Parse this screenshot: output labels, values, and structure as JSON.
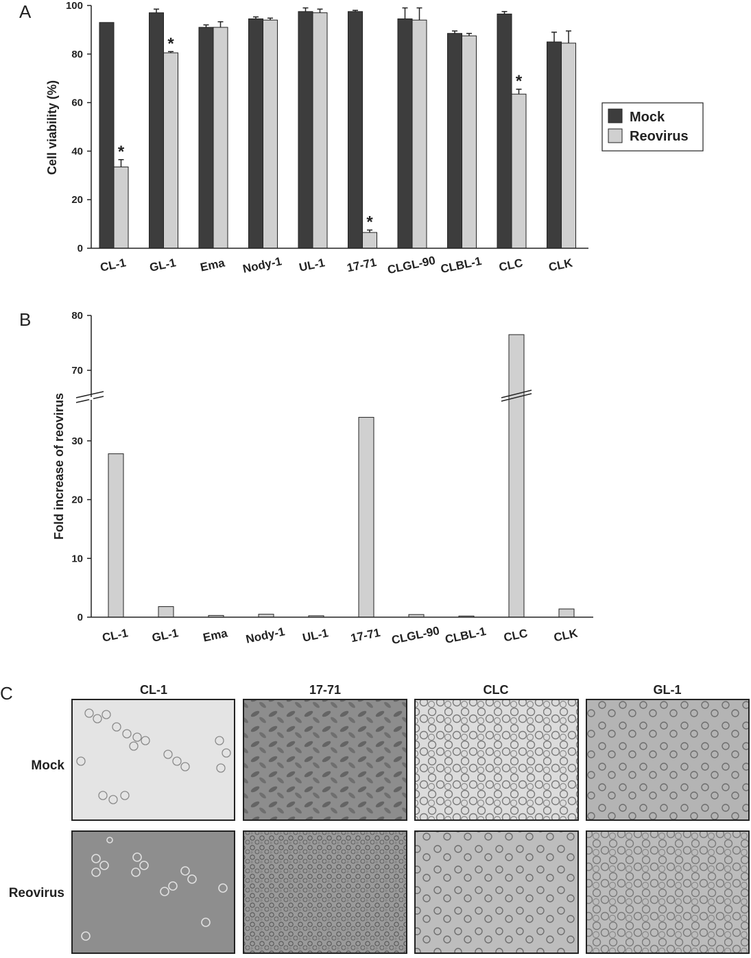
{
  "panels": {
    "A": "A",
    "B": "B",
    "C": "C"
  },
  "chart_data": [
    {
      "type": "bar",
      "panel": "A",
      "categories": [
        "CL-1",
        "GL-1",
        "Ema",
        "Nody-1",
        "UL-1",
        "17-71",
        "CLGL-90",
        "CLBL-1",
        "CLC",
        "CLK"
      ],
      "series": [
        {
          "name": "Mock",
          "color": "#3d3d3d",
          "values": [
            93,
            97,
            91,
            94.5,
            97.5,
            97.5,
            94.5,
            88.5,
            96.5,
            85
          ],
          "errors": [
            0,
            1.5,
            1,
            0.8,
            1.5,
            0.5,
            4.5,
            1,
            1,
            4
          ]
        },
        {
          "name": "Reovirus",
          "color": "#d0d0d0",
          "values": [
            33.5,
            80.5,
            91,
            94,
            97,
            6.5,
            94,
            87.5,
            63.5,
            84.5
          ],
          "errors": [
            3,
            0.5,
            2.3,
            0.8,
            1.5,
            1,
            5,
            1,
            2,
            5
          ]
        }
      ],
      "significant": [
        true,
        true,
        false,
        false,
        false,
        true,
        false,
        false,
        true,
        false
      ],
      "significance_marker": "*",
      "ylabel": "Cell viability (%)",
      "xlabel": "",
      "ylim": [
        0,
        100
      ],
      "yticks": [
        0,
        20,
        40,
        60,
        80,
        100
      ],
      "legend_position": "right"
    },
    {
      "type": "bar",
      "panel": "B",
      "categories": [
        "CL-1",
        "GL-1",
        "Ema",
        "Nody-1",
        "UL-1",
        "17-71",
        "CLGL-90",
        "CLBL-1",
        "CLC",
        "CLK"
      ],
      "series": [
        {
          "name": "Reovirus",
          "color": "#d0d0d0",
          "values": [
            27.8,
            1.8,
            0.3,
            0.5,
            0.25,
            34,
            0.45,
            0.2,
            76.5,
            1.4
          ]
        }
      ],
      "ylabel": "Fold increase of reovirus",
      "xlabel": "",
      "ylim": [
        0,
        80
      ],
      "yticks": [
        0,
        10,
        20,
        30,
        70,
        80
      ],
      "axis_break": {
        "from": 35,
        "to": 65
      }
    }
  ],
  "panelC": {
    "columns": [
      "CL-1",
      "17-71",
      "CLC",
      "GL-1"
    ],
    "rows": [
      "Mock",
      "Reovirus"
    ]
  }
}
